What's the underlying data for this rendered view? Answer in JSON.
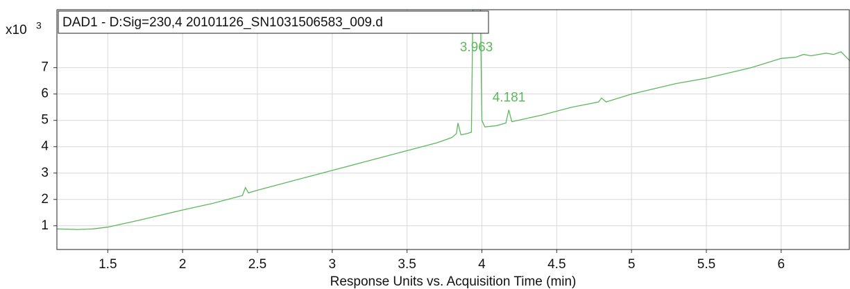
{
  "chart_data": {
    "type": "line",
    "title": "DAD1 - D:Sig=230,4 20101126_SN1031506583_009.d",
    "y_multiplier": "x10",
    "y_exponent": "3",
    "x_label": "Response Units vs. Acquisition Time (min)",
    "color": "#5cb85c",
    "annotations": [
      {
        "text": "3.963",
        "x": 3.963,
        "y": 7.75
      },
      {
        "text": "4.181",
        "x": 4.181,
        "y": 5.85
      }
    ],
    "x": [
      1.16,
      1.3,
      1.4,
      1.5,
      1.7,
      2.0,
      2.2,
      2.4,
      2.42,
      2.44,
      2.5,
      2.8,
      3.0,
      3.3,
      3.5,
      3.7,
      3.8,
      3.83,
      3.84,
      3.86,
      3.9,
      3.93,
      3.94,
      3.99,
      4.0,
      4.02,
      4.1,
      4.16,
      4.18,
      4.2,
      4.4,
      4.6,
      4.78,
      4.8,
      4.83,
      5.0,
      5.3,
      5.5,
      5.8,
      6.0,
      6.1,
      6.15,
      6.2,
      6.3,
      6.35,
      6.4,
      6.46
    ],
    "values": [
      0.88,
      0.86,
      0.88,
      0.95,
      1.2,
      1.6,
      1.85,
      2.15,
      2.45,
      2.25,
      2.35,
      2.8,
      3.1,
      3.55,
      3.85,
      4.15,
      4.35,
      4.5,
      4.9,
      4.45,
      4.5,
      4.55,
      9.2,
      9.2,
      5.0,
      4.75,
      4.8,
      4.9,
      5.4,
      4.95,
      5.2,
      5.5,
      5.7,
      5.85,
      5.7,
      6.0,
      6.4,
      6.6,
      7.0,
      7.35,
      7.4,
      7.5,
      7.45,
      7.55,
      7.5,
      7.6,
      7.25
    ],
    "xlim": [
      1.16,
      6.46
    ],
    "ylim": [
      0.1,
      9.2
    ],
    "xticks": [
      1.5,
      2,
      2.5,
      3,
      3.5,
      4,
      4.5,
      5,
      5.5,
      6
    ],
    "yticks": [
      1,
      2,
      3,
      4,
      5,
      6,
      7
    ],
    "grid": true
  }
}
